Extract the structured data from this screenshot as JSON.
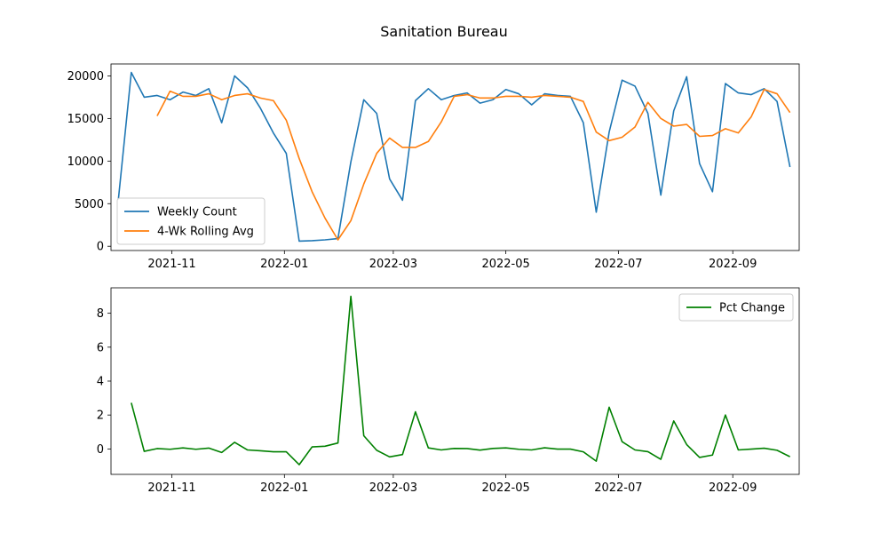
{
  "title": "Sanitation Bureau",
  "chart_data": [
    {
      "type": "line",
      "xlim": [
        "2021-09-29",
        "2022-10-07"
      ],
      "ylim": [
        -500,
        21400
      ],
      "x_ticks": [
        "2021-11-01",
        "2022-01-01",
        "2022-03-01",
        "2022-05-01",
        "2022-07-01",
        "2022-09-01"
      ],
      "x_tick_labels": [
        "2021-11",
        "2022-01",
        "2022-03",
        "2022-05",
        "2022-07",
        "2022-09"
      ],
      "y_ticks": [
        0,
        5000,
        10000,
        15000,
        20000
      ],
      "y_tick_labels": [
        "0",
        "5000",
        "10000",
        "15000",
        "20000"
      ],
      "legend_position": "lower-left",
      "x": [
        "2021-10-03",
        "2021-10-10",
        "2021-10-17",
        "2021-10-24",
        "2021-10-31",
        "2021-11-07",
        "2021-11-14",
        "2021-11-21",
        "2021-11-28",
        "2021-12-05",
        "2021-12-12",
        "2021-12-19",
        "2021-12-26",
        "2022-01-02",
        "2022-01-09",
        "2022-01-16",
        "2022-01-23",
        "2022-01-30",
        "2022-02-06",
        "2022-02-13",
        "2022-02-20",
        "2022-02-27",
        "2022-03-06",
        "2022-03-13",
        "2022-03-20",
        "2022-03-27",
        "2022-04-03",
        "2022-04-10",
        "2022-04-17",
        "2022-04-24",
        "2022-05-01",
        "2022-05-08",
        "2022-05-15",
        "2022-05-22",
        "2022-05-29",
        "2022-06-05",
        "2022-06-12",
        "2022-06-19",
        "2022-06-26",
        "2022-07-03",
        "2022-07-10",
        "2022-07-17",
        "2022-07-24",
        "2022-07-31",
        "2022-08-07",
        "2022-08-14",
        "2022-08-21",
        "2022-08-28",
        "2022-09-04",
        "2022-09-11",
        "2022-09-18",
        "2022-09-25",
        "2022-10-02"
      ],
      "series": [
        {
          "name": "Weekly Count",
          "color": "#1f77b4",
          "values": [
            5500,
            20400,
            17500,
            17700,
            17200,
            18100,
            17700,
            18500,
            14500,
            20000,
            18600,
            16200,
            13300,
            10900,
            600,
            650,
            750,
            900,
            9900,
            17200,
            15600,
            7900,
            5400,
            17100,
            18500,
            17200,
            17700,
            18000,
            16800,
            17200,
            18400,
            17900,
            16600,
            17900,
            17700,
            17600,
            14500,
            4000,
            13400,
            19500,
            18800,
            15600,
            6000,
            15900,
            19900,
            9700,
            6400,
            19100,
            18000,
            17800,
            18500,
            17000,
            9300
          ]
        },
        {
          "name": "4-Wk Rolling Avg",
          "color": "#ff7f0e",
          "values": [
            null,
            null,
            null,
            15300,
            18200,
            17600,
            17600,
            17900,
            17200,
            17700,
            17900,
            17400,
            17100,
            14800,
            10300,
            6400,
            3300,
            750,
            3000,
            7300,
            10900,
            12700,
            11600,
            11600,
            12300,
            14600,
            17600,
            17800,
            17400,
            17400,
            17600,
            17600,
            17500,
            17700,
            17600,
            17500,
            17000,
            13400,
            12400,
            12800,
            14000,
            16900,
            15000,
            14100,
            14300,
            12900,
            13000,
            13800,
            13300,
            15200,
            18400,
            17900,
            15700
          ]
        }
      ]
    },
    {
      "type": "line",
      "xlim": [
        "2021-09-29",
        "2022-10-07"
      ],
      "ylim": [
        -1.5,
        9.5
      ],
      "x_ticks": [
        "2021-11-01",
        "2022-01-01",
        "2022-03-01",
        "2022-05-01",
        "2022-07-01",
        "2022-09-01"
      ],
      "x_tick_labels": [
        "2021-11",
        "2022-01",
        "2022-03",
        "2022-05",
        "2022-07",
        "2022-09"
      ],
      "y_ticks": [
        0,
        2,
        4,
        6,
        8
      ],
      "y_tick_labels": [
        "0",
        "2",
        "4",
        "6",
        "8"
      ],
      "legend_position": "upper-right",
      "x": [
        "2021-10-10",
        "2021-10-17",
        "2021-10-24",
        "2021-10-31",
        "2021-11-07",
        "2021-11-14",
        "2021-11-21",
        "2021-11-28",
        "2021-12-05",
        "2021-12-12",
        "2021-12-19",
        "2021-12-26",
        "2022-01-02",
        "2022-01-09",
        "2022-01-16",
        "2022-01-23",
        "2022-01-30",
        "2022-02-06",
        "2022-02-13",
        "2022-02-20",
        "2022-02-27",
        "2022-03-06",
        "2022-03-13",
        "2022-03-20",
        "2022-03-27",
        "2022-04-03",
        "2022-04-10",
        "2022-04-17",
        "2022-04-24",
        "2022-05-01",
        "2022-05-08",
        "2022-05-15",
        "2022-05-22",
        "2022-05-29",
        "2022-06-05",
        "2022-06-12",
        "2022-06-19",
        "2022-06-26",
        "2022-07-03",
        "2022-07-10",
        "2022-07-17",
        "2022-07-24",
        "2022-07-31",
        "2022-08-07",
        "2022-08-14",
        "2022-08-21",
        "2022-08-28",
        "2022-09-04",
        "2022-09-11",
        "2022-09-18",
        "2022-09-25",
        "2022-10-02"
      ],
      "series": [
        {
          "name": "Pct Change",
          "color": "#008000",
          "values": [
            2.72,
            -0.14,
            0.02,
            -0.02,
            0.06,
            -0.02,
            0.05,
            -0.21,
            0.39,
            -0.06,
            -0.11,
            -0.17,
            -0.17,
            -0.93,
            0.12,
            0.16,
            0.35,
            9.0,
            0.78,
            -0.08,
            -0.47,
            -0.33,
            2.19,
            0.06,
            -0.06,
            0.03,
            0.02,
            -0.07,
            0.03,
            0.06,
            -0.02,
            -0.06,
            0.07,
            -0.01,
            -0.01,
            -0.17,
            -0.72,
            2.46,
            0.43,
            -0.06,
            -0.16,
            -0.61,
            1.65,
            0.26,
            -0.5,
            -0.36,
            2.0,
            -0.06,
            -0.01,
            0.04,
            -0.08,
            -0.46
          ]
        }
      ]
    }
  ]
}
